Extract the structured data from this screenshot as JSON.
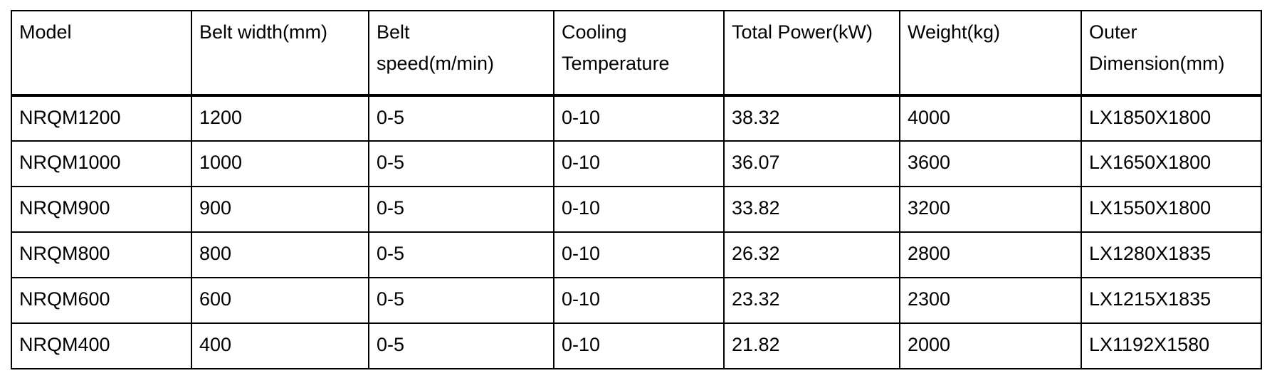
{
  "colors": {
    "background": "#ffffff",
    "border": "#000000",
    "text": "#000000"
  },
  "table": {
    "columns": [
      {
        "label": "Model"
      },
      {
        "label": "Belt width(mm)"
      },
      {
        "label": "Belt\nspeed(m/min)"
      },
      {
        "label": "Cooling\nTemperature"
      },
      {
        "label": "Total Power(kW)"
      },
      {
        "label": "Weight(kg)"
      },
      {
        "label": "Outer\nDimension(mm)"
      }
    ],
    "rows": [
      [
        "NRQM1200",
        "1200",
        "0-5",
        "0-10",
        "38.32",
        "4000",
        "LX1850X1800"
      ],
      [
        "NRQM1000",
        "1000",
        "0-5",
        "0-10",
        "36.07",
        "3600",
        "LX1650X1800"
      ],
      [
        "NRQM900",
        "900",
        "0-5",
        "0-10",
        "33.82",
        "3200",
        "LX1550X1800"
      ],
      [
        "NRQM800",
        "800",
        "0-5",
        "0-10",
        "26.32",
        "2800",
        "LX1280X1835"
      ],
      [
        "NRQM600",
        "600",
        "0-5",
        "0-10",
        "23.32",
        "2300",
        "LX1215X1835"
      ],
      [
        "NRQM400",
        "400",
        "0-5",
        "0-10",
        "21.82",
        "2000",
        "LX1192X1580"
      ]
    ]
  }
}
